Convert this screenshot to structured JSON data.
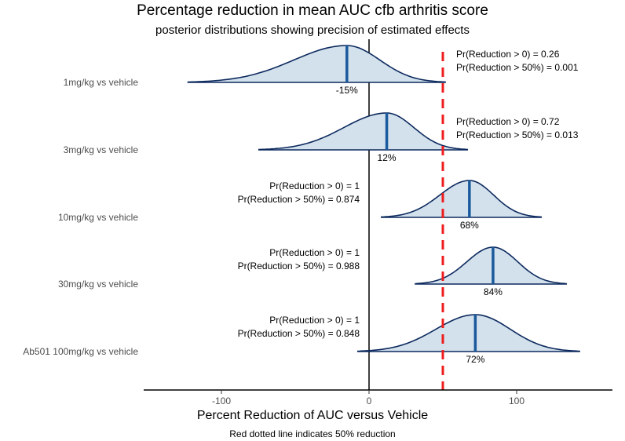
{
  "chart_data": {
    "type": "density",
    "title": "Percentage reduction in mean AUC cfb arthritis score",
    "subtitle": "posterior distributions showing precision of estimated effects",
    "xlabel": "Percent Reduction of AUC versus Vehicle",
    "caption": "Red dotted line indicates 50% reduction",
    "x_ticks": [
      -100,
      0,
      100
    ],
    "xlim": [
      -150,
      170
    ],
    "reference_line": {
      "x": 50,
      "style": "dashed",
      "color": "#ee1c1c"
    },
    "zero_line": {
      "x": 0,
      "color": "#000000"
    },
    "colors": {
      "fill": "#d3e1ed",
      "outline": "#0d2a5e",
      "median": "#1a5a9c"
    },
    "series": [
      {
        "name": "1mg/kg vs vehicle",
        "median": -15,
        "median_label": "-15%",
        "range": [
          -123,
          52
        ],
        "annotations": [
          "Pr(Reduction > 0) = 0.26",
          "Pr(Reduction > 50%) = 0.001"
        ],
        "annotation_side": "right"
      },
      {
        "name": "3mg/kg vs vehicle",
        "median": 12,
        "median_label": "12%",
        "range": [
          -75,
          67
        ],
        "annotations": [
          "Pr(Reduction > 0) = 0.72",
          "Pr(Reduction > 50%) = 0.013"
        ],
        "annotation_side": "right"
      },
      {
        "name": "10mg/kg vs vehicle",
        "median": 68,
        "median_label": "68%",
        "range": [
          8,
          117
        ],
        "annotations": [
          "Pr(Reduction > 0) = 1",
          "Pr(Reduction > 50%) = 0.874"
        ],
        "annotation_side": "left"
      },
      {
        "name": "30mg/kg vs vehicle",
        "median": 84,
        "median_label": "84%",
        "range": [
          31,
          134
        ],
        "annotations": [
          "Pr(Reduction > 0) = 1",
          "Pr(Reduction > 50%) = 0.988"
        ],
        "annotation_side": "left"
      },
      {
        "name": "Ab501 100mg/kg vs vehicle",
        "median": 72,
        "median_label": "72%",
        "range": [
          -8,
          143
        ],
        "annotations": [
          "Pr(Reduction > 0) = 1",
          "Pr(Reduction > 50%) = 0.848"
        ],
        "annotation_side": "left"
      }
    ]
  }
}
